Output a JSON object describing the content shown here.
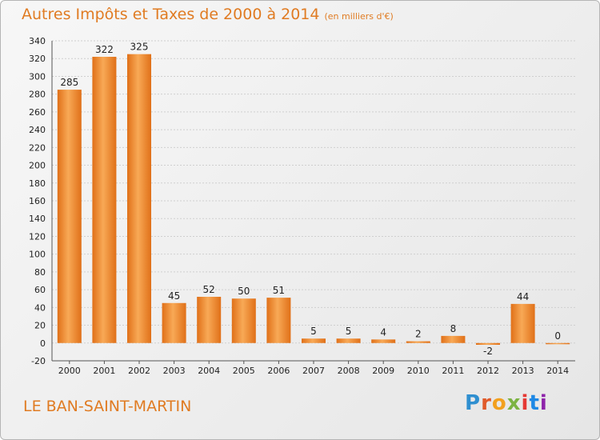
{
  "chart_data": {
    "type": "bar",
    "title": "Autres Impôts et Taxes de 2000 à 2014",
    "unit_label": "(en milliers d'€)",
    "categories": [
      "2000",
      "2001",
      "2002",
      "2003",
      "2004",
      "2005",
      "2006",
      "2007",
      "2008",
      "2009",
      "2010",
      "2011",
      "2012",
      "2013",
      "2014"
    ],
    "values": [
      285,
      322,
      325,
      45,
      52,
      50,
      51,
      5,
      5,
      4,
      2,
      8,
      -2,
      44,
      0
    ],
    "ylim": [
      -20,
      340
    ],
    "ytick_step": 20,
    "grid": true,
    "bar_color": "#f08a2c",
    "bar_color_light": "#f8b36a",
    "legend": "none"
  },
  "footer": {
    "commune": "LE BAN-SAINT-MARTIN",
    "logo_letters": [
      "P",
      "r",
      "o",
      "x",
      "i",
      "t",
      "i"
    ],
    "logo_colors": [
      "#2f8fd0",
      "#e05a2a",
      "#f2a01e",
      "#7cb342",
      "#e53935",
      "#1e88e5",
      "#8e24aa"
    ]
  }
}
